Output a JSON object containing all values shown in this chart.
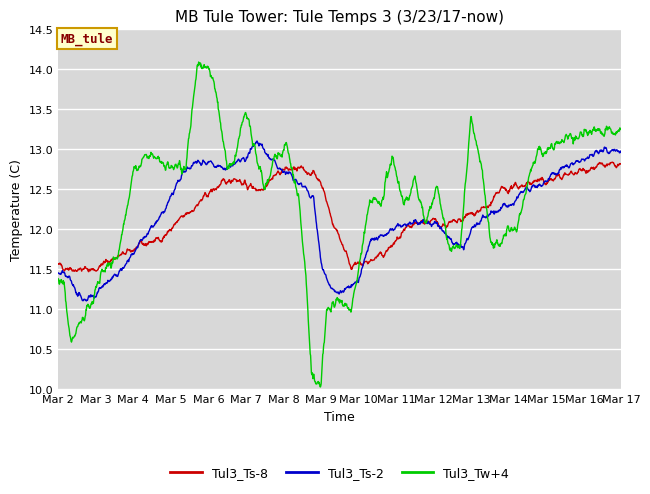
{
  "title": "MB Tule Tower: Tule Temps 3 (3/23/17-now)",
  "xlabel": "Time",
  "ylabel": "Temperature (C)",
  "ylim": [
    10.0,
    14.5
  ],
  "yticks": [
    10.0,
    10.5,
    11.0,
    11.5,
    12.0,
    12.5,
    13.0,
    13.5,
    14.0,
    14.5
  ],
  "xtick_labels": [
    "Mar 2",
    "Mar 3",
    "Mar 4",
    "Mar 5",
    "Mar 6",
    "Mar 7",
    "Mar 8",
    "Mar 9",
    "Mar 10",
    "Mar 11",
    "Mar 12",
    "Mar 13",
    "Mar 14",
    "Mar 15",
    "Mar 16",
    "Mar 17"
  ],
  "fig_bg": "#ffffff",
  "plot_bg": "#d8d8d8",
  "grid_color": "#ffffff",
  "line_colors": [
    "#cc0000",
    "#0000cc",
    "#00cc00"
  ],
  "series_labels": [
    "Tul3_Ts-8",
    "Tul3_Ts-2",
    "Tul3_Tw+4"
  ],
  "legend_label": "MB_tule",
  "legend_box_facecolor": "#ffffcc",
  "legend_box_edgecolor": "#cc9900",
  "legend_text_color": "#880000",
  "title_fontsize": 11,
  "axis_label_fontsize": 9,
  "tick_fontsize": 8,
  "legend_fontsize": 9
}
